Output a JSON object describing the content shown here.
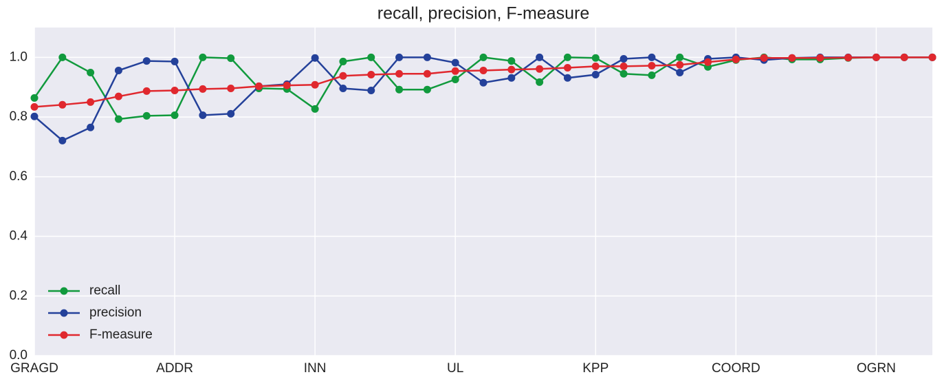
{
  "chart_data": {
    "type": "line",
    "title": "recall, precision, F-measure",
    "categories": [
      "GRAGD",
      null,
      null,
      null,
      null,
      "ADDR",
      null,
      null,
      null,
      null,
      "INN",
      null,
      null,
      null,
      null,
      "UL",
      null,
      null,
      null,
      null,
      "KPP",
      null,
      null,
      null,
      null,
      "COORD",
      null,
      null,
      null,
      null,
      "OGRN",
      null,
      null
    ],
    "series": [
      {
        "name": "recall",
        "color": "#119a3d",
        "values": [
          0.864,
          1.0,
          0.949,
          0.793,
          0.804,
          0.806,
          1.0,
          0.997,
          0.896,
          0.894,
          0.827,
          0.986,
          1.0,
          0.892,
          0.892,
          0.926,
          1.0,
          0.988,
          0.917,
          1.0,
          0.998,
          0.945,
          0.94,
          1.0,
          0.968,
          0.991,
          1.0,
          0.993,
          0.993,
          0.998,
          1.0,
          1.0,
          1.0
        ]
      },
      {
        "name": "precision",
        "color": "#24419a",
        "values": [
          0.802,
          0.721,
          0.765,
          0.956,
          0.988,
          0.986,
          0.806,
          0.811,
          0.903,
          0.91,
          0.998,
          0.896,
          0.889,
          1.0,
          1.0,
          0.982,
          0.915,
          0.931,
          1.0,
          0.931,
          0.942,
          0.995,
          1.0,
          0.949,
          0.995,
          1.0,
          0.991,
          0.998,
          1.0,
          1.0,
          1.0,
          1.0,
          1.0
        ]
      },
      {
        "name": "F-measure",
        "color": "#e0282e",
        "values": [
          0.834,
          0.841,
          0.85,
          0.869,
          0.887,
          0.889,
          0.894,
          0.896,
          0.903,
          0.906,
          0.908,
          0.938,
          0.942,
          0.945,
          0.945,
          0.954,
          0.956,
          0.959,
          0.961,
          0.965,
          0.97,
          0.97,
          0.972,
          0.975,
          0.984,
          0.993,
          0.998,
          0.998,
          0.998,
          0.999,
          1.0,
          1.0,
          1.0
        ]
      }
    ],
    "ylim": [
      0,
      1.1
    ],
    "yticks": [
      {
        "value": 0,
        "label": "0.0"
      },
      0.2,
      0.4,
      0.6,
      0.8,
      {
        "value": 1,
        "label": "1.0"
      }
    ],
    "grid": true,
    "legend": "lower left"
  }
}
